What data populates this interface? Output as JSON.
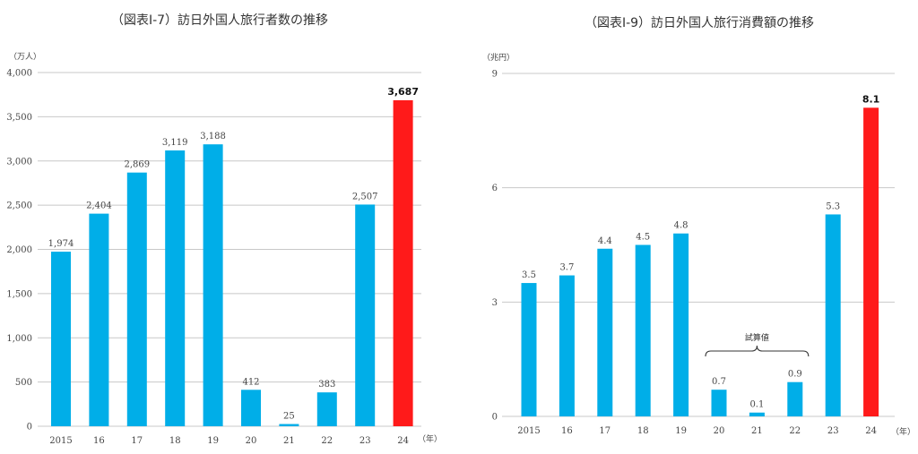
{
  "chart_data": [
    {
      "type": "bar",
      "title": "（図表Ⅰ-7）訪日外国人旅行者数の推移",
      "ylabel": "（万人）",
      "xlabel": "（年）",
      "categories": [
        "2015",
        "16",
        "17",
        "18",
        "19",
        "20",
        "21",
        "22",
        "23",
        "24"
      ],
      "values": [
        1974,
        2404,
        2869,
        3119,
        3188,
        412,
        25,
        383,
        2507,
        3687
      ],
      "value_labels": [
        "1,974",
        "2,404",
        "2,869",
        "3,119",
        "3,188",
        "412",
        "25",
        "383",
        "2,507",
        "3,687"
      ],
      "ylim": [
        0,
        4000
      ],
      "yticks": [
        0,
        500,
        1000,
        1500,
        2000,
        2500,
        3000,
        3500,
        4000
      ],
      "ytick_labels": [
        "0",
        "500",
        "1,000",
        "1,500",
        "2,000",
        "2,500",
        "3,000",
        "3,500",
        "4,000"
      ],
      "grid": true,
      "highlight_index": 9,
      "colors": {
        "bar": "#00aee8",
        "highlight": "#ff1a1a",
        "grid": "#c8c8c8"
      }
    },
    {
      "type": "bar",
      "title": "（図表Ⅰ-9）訪日外国人旅行消費額の推移",
      "ylabel": "（兆円）",
      "xlabel": "（年）",
      "categories": [
        "2015",
        "16",
        "17",
        "18",
        "19",
        "20",
        "21",
        "22",
        "23",
        "24"
      ],
      "values": [
        3.5,
        3.7,
        4.4,
        4.5,
        4.8,
        0.7,
        0.1,
        0.9,
        5.3,
        8.1
      ],
      "value_labels": [
        "3.5",
        "3.7",
        "4.4",
        "4.5",
        "4.8",
        "0.7",
        "0.1",
        "0.9",
        "5.3",
        "8.1"
      ],
      "ylim": [
        0,
        9
      ],
      "yticks": [
        0,
        3,
        6,
        9
      ],
      "ytick_labels": [
        "0",
        "3",
        "6",
        "9"
      ],
      "grid": true,
      "highlight_index": 9,
      "annotation": {
        "text": "試算値",
        "from_index": 5,
        "to_index": 7
      },
      "colors": {
        "bar": "#00aee8",
        "highlight": "#ff1a1a",
        "grid": "#c8c8c8"
      }
    }
  ]
}
